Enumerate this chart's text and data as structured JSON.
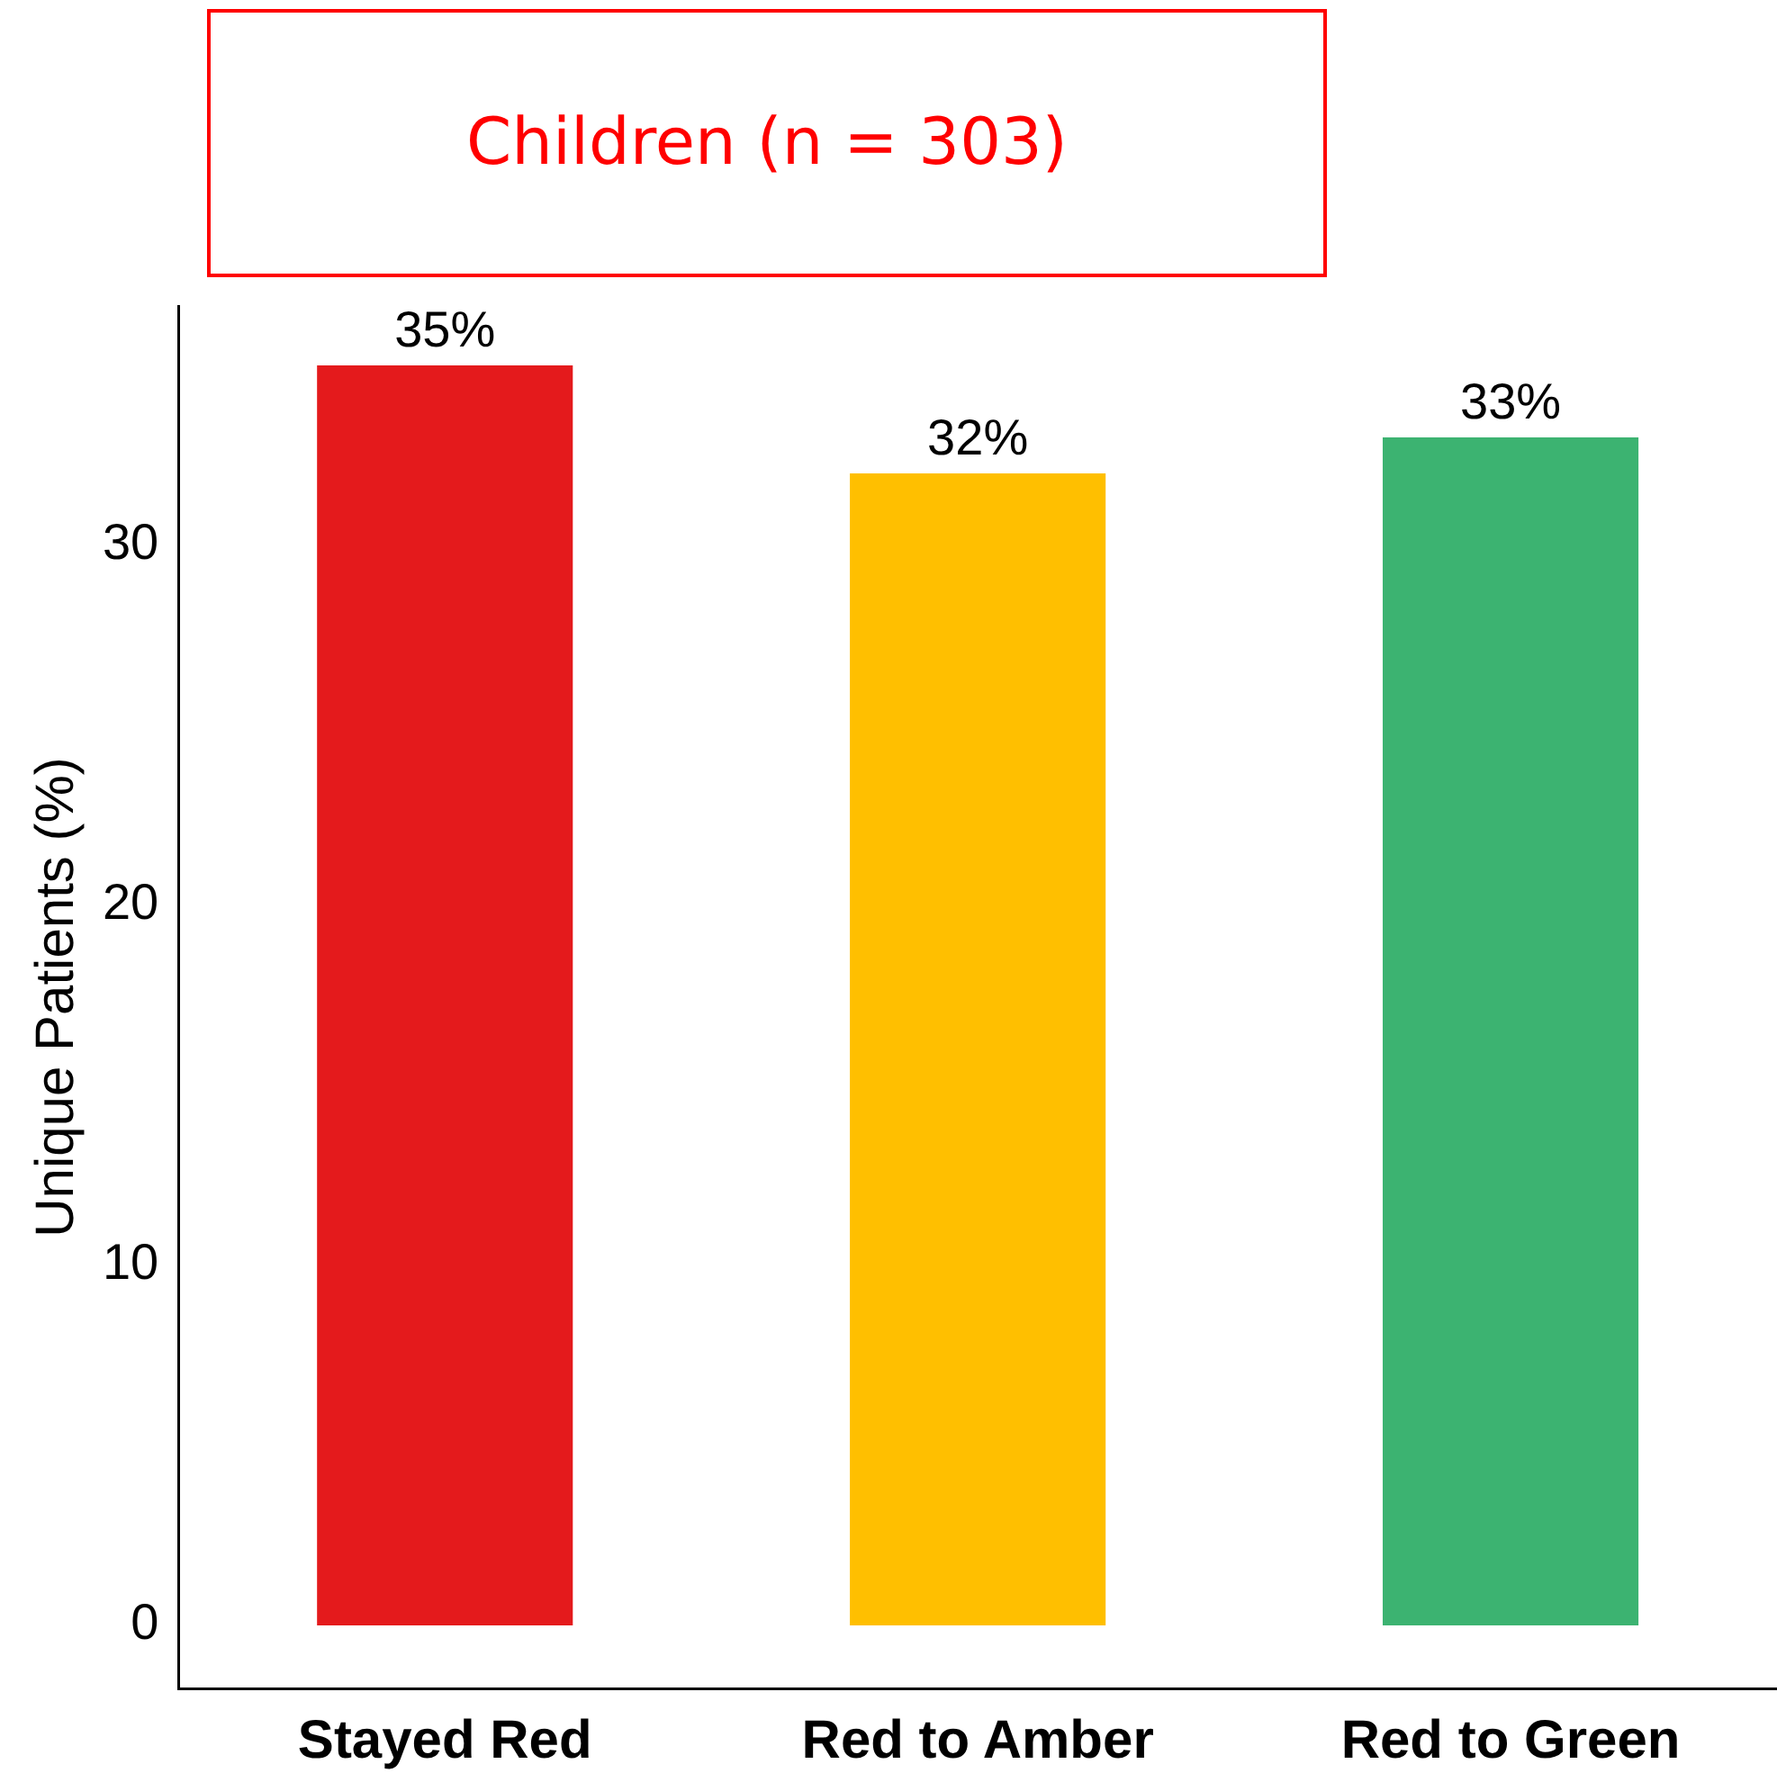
{
  "chart_data": {
    "type": "bar",
    "title": "Children (n = 303)",
    "ylabel": "Unique Patients (%)",
    "categories": [
      "Stayed Red",
      "Red to Amber",
      "Red to Green"
    ],
    "values": [
      35,
      32,
      33
    ],
    "colors": [
      "#e41a1c",
      "#ffbf00",
      "#3cb371"
    ],
    "value_labels": [
      "35%",
      "32%",
      "33%"
    ],
    "ylim": [
      -1.75,
      36.65
    ],
    "yticks": [
      0,
      10,
      20,
      30
    ]
  }
}
